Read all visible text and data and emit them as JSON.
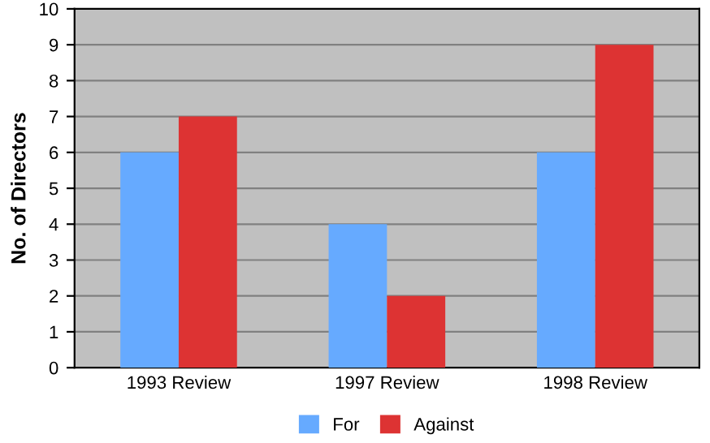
{
  "chart_data": {
    "type": "bar",
    "ylabel": "No. of Directors",
    "categories": [
      "1993 Review",
      "1997 Review",
      "1998 Review"
    ],
    "series": [
      {
        "name": "For",
        "color": "#66aaff",
        "values": [
          6,
          4,
          6
        ]
      },
      {
        "name": "Against",
        "color": "#dd3333",
        "values": [
          7,
          2,
          9
        ]
      }
    ],
    "ylim": [
      0,
      10
    ],
    "yticks": [
      0,
      1,
      2,
      3,
      4,
      5,
      6,
      7,
      8,
      9,
      10
    ],
    "grid": "y",
    "legend": "bottom"
  }
}
